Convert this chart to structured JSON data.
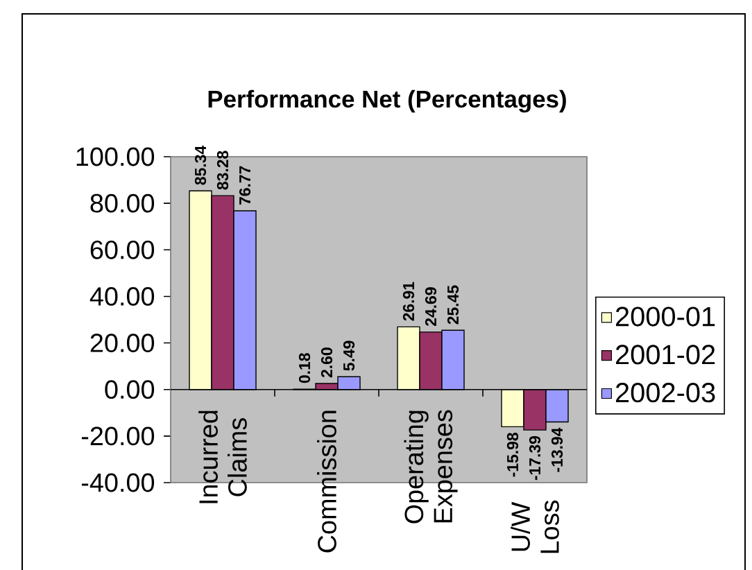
{
  "chart_data": {
    "type": "bar",
    "title": "Performance Net (Percentages)",
    "categories": [
      "Incurred Claims",
      "Commission",
      "Operating Expenses",
      "U/W Loss"
    ],
    "series": [
      {
        "name": "2000-01",
        "color": "#ffffcc",
        "values": [
          85.34,
          0.18,
          26.91,
          -15.98
        ],
        "value_labels": [
          "85.34",
          "0.18",
          "26.91",
          "-15.98"
        ]
      },
      {
        "name": "2001-02",
        "color": "#993366",
        "values": [
          83.28,
          2.6,
          24.69,
          -17.39
        ],
        "value_labels": [
          "83.28",
          "2.60",
          "24.69",
          "-17.39"
        ]
      },
      {
        "name": "2002-03",
        "color": "#9999ff",
        "values": [
          76.77,
          5.49,
          25.45,
          -13.94
        ],
        "value_labels": [
          "76.77",
          "5.49",
          "25.45",
          "-13.94"
        ]
      }
    ],
    "ylim": [
      -40,
      100
    ],
    "yticks": [
      {
        "value": -40,
        "label": "-40.00"
      },
      {
        "value": -20,
        "label": "-20.00"
      },
      {
        "value": 0,
        "label": "0.00"
      },
      {
        "value": 20,
        "label": "20.00"
      },
      {
        "value": 40,
        "label": "40.00"
      },
      {
        "value": 60,
        "label": "60.00"
      },
      {
        "value": 80,
        "label": "80.00"
      },
      {
        "value": 100,
        "label": "100.00"
      }
    ],
    "legend": "right"
  }
}
